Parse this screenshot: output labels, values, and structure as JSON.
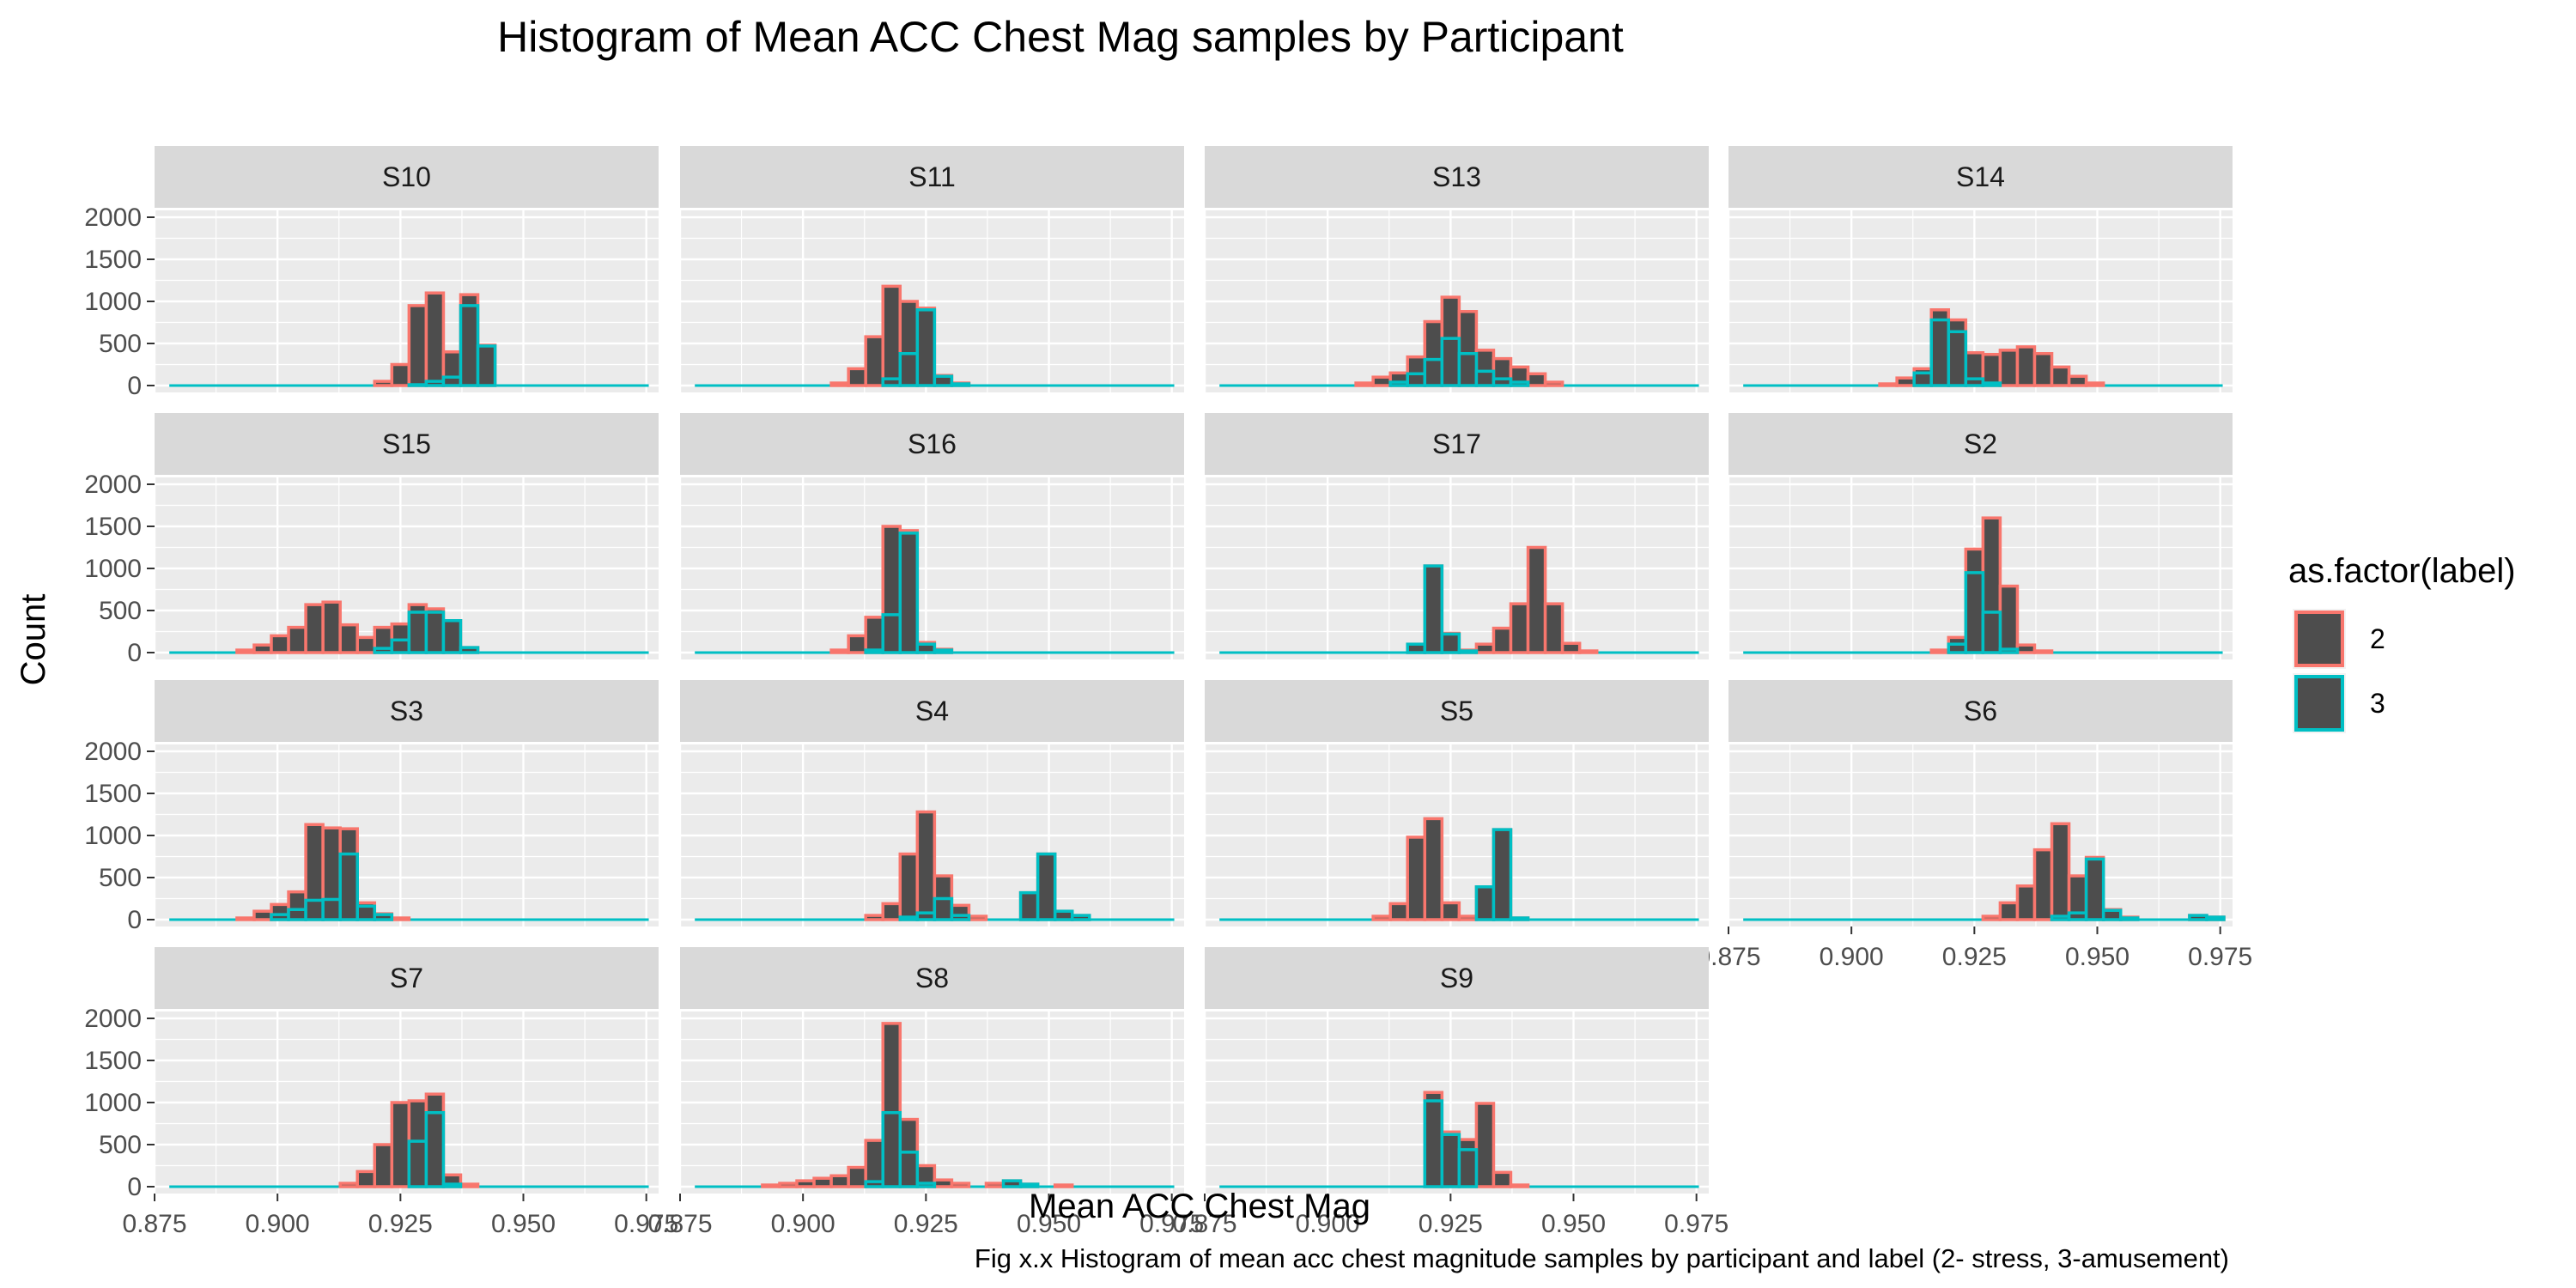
{
  "chart_data": {
    "type": "bar",
    "title": "Histogram of Mean ACC Chest Mag samples by Participant",
    "xlabel": "Mean ACC Chest Mag",
    "ylabel": "Count",
    "caption": "Fig x.x Histogram of mean acc chest magnitude samples by participant and label (2- stress, 3-amusement)",
    "xlim": [
      0.875,
      0.9775
    ],
    "ylim": [
      0,
      2000
    ],
    "x_ticks": [
      "0.875",
      "0.900",
      "0.925",
      "0.950",
      "0.975"
    ],
    "y_ticks": [
      "0",
      "500",
      "1000",
      "1500",
      "2000"
    ],
    "bin_width": 0.0035,
    "legend": {
      "title": "as.factor(label)",
      "position": "right",
      "entries": [
        {
          "label": "2",
          "color": "#F8766D"
        },
        {
          "label": "3",
          "color": "#00BFC4"
        }
      ]
    },
    "bar_fill": "#4d4d4d",
    "grid": true,
    "facets": [
      {
        "name": "S10",
        "label2": [
          [
            0.9215,
            50
          ],
          [
            0.925,
            250
          ],
          [
            0.9285,
            950
          ],
          [
            0.932,
            1100
          ],
          [
            0.9355,
            400
          ],
          [
            0.939,
            1080
          ],
          [
            0.9425,
            480
          ]
        ],
        "label3": [
          [
            0.9285,
            10
          ],
          [
            0.932,
            50
          ],
          [
            0.9355,
            100
          ],
          [
            0.939,
            950
          ],
          [
            0.9425,
            470
          ]
        ]
      },
      {
        "name": "S11",
        "label2": [
          [
            0.9075,
            30
          ],
          [
            0.911,
            200
          ],
          [
            0.9145,
            580
          ],
          [
            0.918,
            1180
          ],
          [
            0.9215,
            1000
          ],
          [
            0.925,
            920
          ],
          [
            0.9285,
            120
          ],
          [
            0.932,
            30
          ]
        ],
        "label3": [
          [
            0.918,
            80
          ],
          [
            0.9215,
            380
          ],
          [
            0.925,
            900
          ],
          [
            0.9285,
            110
          ],
          [
            0.932,
            20
          ]
        ]
      },
      {
        "name": "S13",
        "label2": [
          [
            0.9075,
            30
          ],
          [
            0.911,
            100
          ],
          [
            0.9145,
            150
          ],
          [
            0.918,
            340
          ],
          [
            0.9215,
            760
          ],
          [
            0.925,
            1050
          ],
          [
            0.9285,
            880
          ],
          [
            0.932,
            420
          ],
          [
            0.9355,
            320
          ],
          [
            0.939,
            220
          ],
          [
            0.9425,
            140
          ],
          [
            0.946,
            40
          ]
        ],
        "label3": [
          [
            0.9145,
            40
          ],
          [
            0.918,
            140
          ],
          [
            0.9215,
            310
          ],
          [
            0.925,
            560
          ],
          [
            0.9285,
            380
          ],
          [
            0.932,
            170
          ],
          [
            0.9355,
            80
          ],
          [
            0.939,
            40
          ]
        ]
      },
      {
        "name": "S14",
        "label2": [
          [
            0.9075,
            20
          ],
          [
            0.911,
            90
          ],
          [
            0.9145,
            200
          ],
          [
            0.918,
            900
          ],
          [
            0.9215,
            780
          ],
          [
            0.925,
            390
          ],
          [
            0.9285,
            370
          ],
          [
            0.932,
            420
          ],
          [
            0.9355,
            460
          ],
          [
            0.939,
            380
          ],
          [
            0.9425,
            220
          ],
          [
            0.946,
            110
          ],
          [
            0.9495,
            30
          ]
        ],
        "label3": [
          [
            0.9145,
            150
          ],
          [
            0.918,
            780
          ],
          [
            0.9215,
            640
          ],
          [
            0.925,
            80
          ],
          [
            0.9285,
            30
          ]
        ]
      },
      {
        "name": "S15",
        "label2": [
          [
            0.8935,
            30
          ],
          [
            0.897,
            90
          ],
          [
            0.9005,
            200
          ],
          [
            0.904,
            300
          ],
          [
            0.9075,
            570
          ],
          [
            0.911,
            600
          ],
          [
            0.9145,
            330
          ],
          [
            0.918,
            180
          ],
          [
            0.9215,
            300
          ],
          [
            0.925,
            340
          ],
          [
            0.9285,
            570
          ],
          [
            0.932,
            520
          ],
          [
            0.9355,
            380
          ],
          [
            0.939,
            60
          ]
        ],
        "label3": [
          [
            0.9215,
            50
          ],
          [
            0.925,
            150
          ],
          [
            0.9285,
            480
          ],
          [
            0.932,
            480
          ],
          [
            0.9355,
            380
          ],
          [
            0.939,
            60
          ]
        ]
      },
      {
        "name": "S16",
        "label2": [
          [
            0.9075,
            30
          ],
          [
            0.911,
            200
          ],
          [
            0.9145,
            420
          ],
          [
            0.918,
            1500
          ],
          [
            0.9215,
            1450
          ],
          [
            0.925,
            120
          ],
          [
            0.9285,
            40
          ]
        ],
        "label3": [
          [
            0.9145,
            30
          ],
          [
            0.918,
            450
          ],
          [
            0.9215,
            1420
          ],
          [
            0.925,
            100
          ],
          [
            0.9285,
            30
          ]
        ]
      },
      {
        "name": "S17",
        "label2": [
          [
            0.918,
            100
          ],
          [
            0.9215,
            1030
          ],
          [
            0.925,
            230
          ],
          [
            0.9285,
            30
          ],
          [
            0.932,
            100
          ],
          [
            0.9355,
            290
          ],
          [
            0.939,
            580
          ],
          [
            0.9425,
            1250
          ],
          [
            0.946,
            580
          ],
          [
            0.9495,
            110
          ],
          [
            0.953,
            20
          ]
        ],
        "label3": [
          [
            0.918,
            100
          ],
          [
            0.9215,
            1030
          ],
          [
            0.925,
            220
          ],
          [
            0.9285,
            20
          ]
        ]
      },
      {
        "name": "S2",
        "label2": [
          [
            0.918,
            30
          ],
          [
            0.9215,
            180
          ],
          [
            0.925,
            1230
          ],
          [
            0.9285,
            1600
          ],
          [
            0.932,
            790
          ],
          [
            0.9355,
            90
          ],
          [
            0.939,
            20
          ]
        ],
        "label3": [
          [
            0.9215,
            100
          ],
          [
            0.925,
            950
          ],
          [
            0.9285,
            480
          ],
          [
            0.932,
            40
          ]
        ]
      },
      {
        "name": "S3",
        "label2": [
          [
            0.8935,
            20
          ],
          [
            0.897,
            100
          ],
          [
            0.9005,
            180
          ],
          [
            0.904,
            330
          ],
          [
            0.9075,
            1130
          ],
          [
            0.911,
            1090
          ],
          [
            0.9145,
            1080
          ],
          [
            0.918,
            200
          ],
          [
            0.9215,
            70
          ],
          [
            0.925,
            20
          ]
        ],
        "label3": [
          [
            0.9005,
            60
          ],
          [
            0.904,
            120
          ],
          [
            0.9075,
            230
          ],
          [
            0.911,
            240
          ],
          [
            0.9145,
            780
          ],
          [
            0.918,
            160
          ],
          [
            0.9215,
            60
          ]
        ]
      },
      {
        "name": "S4",
        "label2": [
          [
            0.9145,
            50
          ],
          [
            0.918,
            190
          ],
          [
            0.9215,
            780
          ],
          [
            0.925,
            1280
          ],
          [
            0.9285,
            520
          ],
          [
            0.932,
            170
          ],
          [
            0.9355,
            40
          ],
          [
            0.946,
            320
          ],
          [
            0.9495,
            780
          ],
          [
            0.953,
            100
          ],
          [
            0.9565,
            50
          ]
        ],
        "label3": [
          [
            0.9215,
            30
          ],
          [
            0.925,
            80
          ],
          [
            0.9285,
            250
          ],
          [
            0.932,
            50
          ],
          [
            0.946,
            320
          ],
          [
            0.9495,
            780
          ],
          [
            0.953,
            100
          ],
          [
            0.9565,
            50
          ]
        ]
      },
      {
        "name": "S5",
        "label2": [
          [
            0.911,
            40
          ],
          [
            0.9145,
            190
          ],
          [
            0.918,
            980
          ],
          [
            0.9215,
            1200
          ],
          [
            0.925,
            200
          ],
          [
            0.9285,
            40
          ],
          [
            0.932,
            390
          ],
          [
            0.9355,
            1070
          ],
          [
            0.939,
            20
          ]
        ],
        "label3": [
          [
            0.932,
            390
          ],
          [
            0.9355,
            1070
          ],
          [
            0.939,
            20
          ]
        ]
      },
      {
        "name": "S6",
        "label2": [
          [
            0.9285,
            40
          ],
          [
            0.932,
            200
          ],
          [
            0.9355,
            400
          ],
          [
            0.939,
            830
          ],
          [
            0.9425,
            1140
          ],
          [
            0.946,
            520
          ],
          [
            0.9495,
            740
          ],
          [
            0.953,
            120
          ],
          [
            0.9565,
            30
          ],
          [
            0.9705,
            50
          ],
          [
            0.974,
            30
          ]
        ],
        "label3": [
          [
            0.9425,
            40
          ],
          [
            0.946,
            80
          ],
          [
            0.9495,
            720
          ],
          [
            0.953,
            110
          ],
          [
            0.9565,
            20
          ],
          [
            0.9705,
            50
          ],
          [
            0.974,
            30
          ]
        ]
      },
      {
        "name": "S7",
        "label2": [
          [
            0.9145,
            40
          ],
          [
            0.918,
            180
          ],
          [
            0.9215,
            500
          ],
          [
            0.925,
            1000
          ],
          [
            0.9285,
            1020
          ],
          [
            0.932,
            1100
          ],
          [
            0.9355,
            140
          ],
          [
            0.939,
            30
          ]
        ],
        "label3": [
          [
            0.9285,
            540
          ],
          [
            0.932,
            880
          ],
          [
            0.9355,
            30
          ]
        ]
      },
      {
        "name": "S8",
        "label2": [
          [
            0.8935,
            20
          ],
          [
            0.897,
            40
          ],
          [
            0.9005,
            70
          ],
          [
            0.904,
            100
          ],
          [
            0.9075,
            130
          ],
          [
            0.911,
            230
          ],
          [
            0.9145,
            550
          ],
          [
            0.918,
            1940
          ],
          [
            0.9215,
            800
          ],
          [
            0.925,
            250
          ],
          [
            0.9285,
            80
          ],
          [
            0.932,
            40
          ],
          [
            0.939,
            40
          ],
          [
            0.9425,
            70
          ],
          [
            0.946,
            30
          ],
          [
            0.953,
            20
          ]
        ],
        "label3": [
          [
            0.9145,
            60
          ],
          [
            0.918,
            880
          ],
          [
            0.9215,
            410
          ],
          [
            0.925,
            40
          ],
          [
            0.9425,
            70
          ],
          [
            0.946,
            30
          ]
        ]
      },
      {
        "name": "S9",
        "label2": [
          [
            0.9215,
            1120
          ],
          [
            0.925,
            650
          ],
          [
            0.9285,
            560
          ],
          [
            0.932,
            990
          ],
          [
            0.9355,
            170
          ],
          [
            0.939,
            20
          ]
        ],
        "label3": [
          [
            0.9215,
            1020
          ],
          [
            0.925,
            620
          ],
          [
            0.9285,
            440
          ]
        ]
      }
    ]
  }
}
